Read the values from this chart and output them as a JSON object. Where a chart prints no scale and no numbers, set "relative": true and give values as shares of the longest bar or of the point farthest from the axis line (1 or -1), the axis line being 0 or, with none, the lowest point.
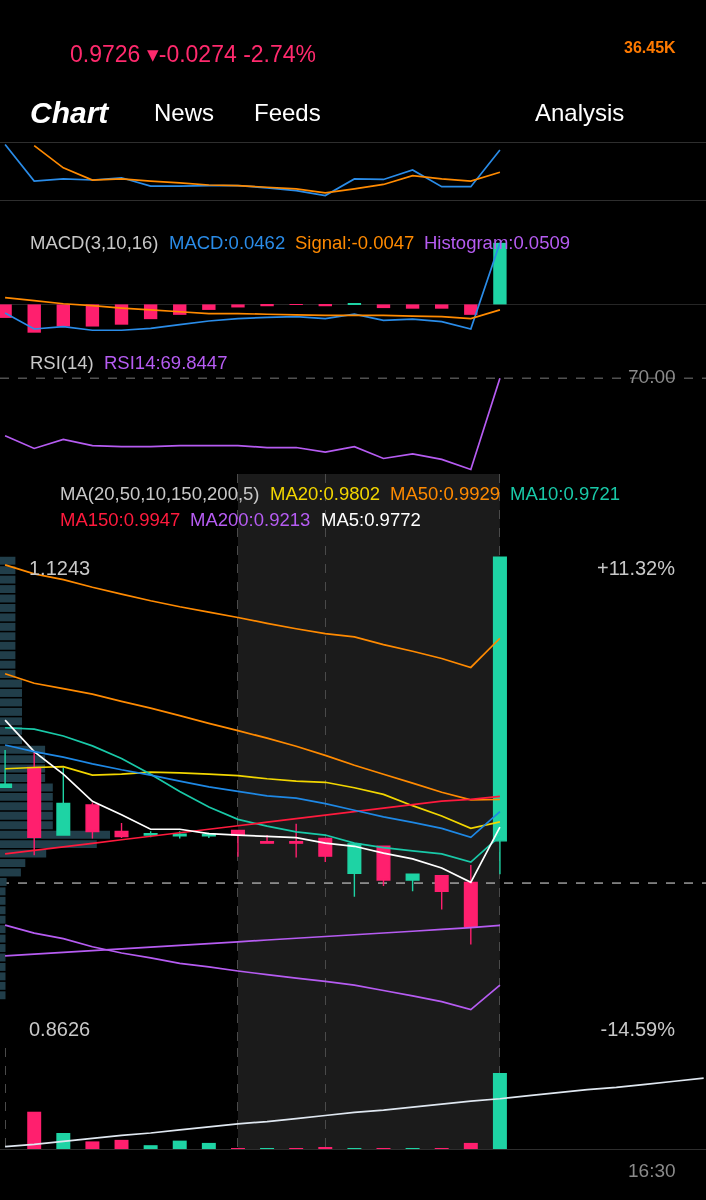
{
  "chart_data": [
    {
      "type": "other",
      "title": "0.9726 ▾-0.0274 -2.74%",
      "color": "#ff2a6d",
      "annotations": [
        "36.45K",
        "Chart",
        "News",
        "Feeds",
        "Analysis"
      ],
      "colors": [
        "#ff7a00",
        "#ffffff",
        "#ffffff",
        "#ffffff",
        "#ffffff"
      ]
    },
    {
      "type": "line",
      "relative": true,
      "tick_labels": false,
      "categories": [
        null,
        null,
        null,
        null,
        null,
        null,
        null,
        null,
        null,
        null,
        null,
        null,
        null,
        null,
        null,
        null,
        null,
        null,
        null,
        null,
        null,
        null,
        null,
        null,
        null
      ],
      "series": [
        {
          "color": "#2a8ce8",
          "values": [
            1.0,
            0.34,
            0.38,
            0.36,
            0.4,
            0.25,
            0.25,
            0.26,
            0.26,
            0.22,
            0.17,
            0.08,
            0.38,
            0.37,
            0.54,
            0.24,
            0.24,
            0.9,
            null,
            null,
            null,
            null,
            null,
            null,
            null
          ]
        },
        {
          "color": "#ff8a00",
          "values": [
            null,
            0.98,
            0.58,
            0.36,
            0.38,
            0.34,
            0.31,
            0.27,
            0.26,
            0.23,
            0.2,
            0.13,
            0.2,
            0.28,
            0.44,
            0.38,
            0.34,
            0.5,
            null,
            null,
            null,
            null,
            null,
            null,
            null
          ]
        }
      ]
    },
    {
      "type": "bar",
      "relative": true,
      "tick_labels": false,
      "title": "MACD(3,10,16)",
      "categories": [
        null,
        null,
        null,
        null,
        null,
        null,
        null,
        null,
        null,
        null,
        null,
        null,
        null,
        null,
        null,
        null,
        null,
        null,
        null,
        null,
        null,
        null,
        null,
        null,
        null
      ],
      "series": [
        {
          "name": "MACD:0.0462",
          "type": "line",
          "color": "#2a8ce8",
          "values": [
            -0.14,
            -0.4,
            -0.36,
            -0.42,
            -0.42,
            -0.39,
            -0.33,
            -0.27,
            -0.23,
            -0.21,
            -0.2,
            -0.23,
            -0.16,
            -0.26,
            -0.24,
            -0.28,
            -0.4,
            1.0,
            null,
            null,
            null,
            null,
            null,
            null,
            null
          ]
        },
        {
          "name": "Signal:-0.0047",
          "type": "line",
          "color": "#ff8a00",
          "values": [
            0.11,
            0.06,
            0.01,
            -0.02,
            -0.06,
            -0.09,
            -0.12,
            -0.15,
            -0.15,
            -0.16,
            -0.17,
            -0.18,
            -0.18,
            -0.18,
            -0.19,
            -0.2,
            -0.23,
            -0.09,
            null,
            null,
            null,
            null,
            null,
            null,
            null
          ]
        },
        {
          "name": "Histogram:0.0509",
          "type": "bar",
          "color": "#b65cf2",
          "colors": [
            "#ff1f6e",
            "#ff1f6e",
            "#ff1f6e",
            "#ff1f6e",
            "#ff1f6e",
            "#ff1f6e",
            "#ff1f6e",
            "#ff1f6e",
            "#ff1f6e",
            "#ff1f6e",
            "#ff1f6e",
            "#ff1f6e",
            "#1ed3a4",
            "#ff1f6e",
            "#ff1f6e",
            "#ff1f6e",
            "#ff1f6e",
            "#1ed3a4",
            null,
            null,
            null,
            null,
            null,
            null,
            null
          ],
          "values": [
            -0.22,
            -0.46,
            -0.36,
            -0.36,
            -0.33,
            -0.24,
            -0.17,
            -0.09,
            -0.05,
            -0.03,
            -0.01,
            -0.03,
            0.01,
            -0.06,
            -0.07,
            -0.07,
            -0.17,
            1.0,
            null,
            null,
            null,
            null,
            null,
            null,
            null
          ]
        }
      ]
    },
    {
      "type": "line",
      "relative": true,
      "tick_labels": false,
      "title": "RSI(14)",
      "categories": [
        null,
        null,
        null,
        null,
        null,
        null,
        null,
        null,
        null,
        null,
        null,
        null,
        null,
        null,
        null,
        null,
        null,
        null,
        null,
        null,
        null,
        null,
        null,
        null,
        null
      ],
      "series": [
        {
          "name": "RSI14:69.8447",
          "color": "#b65cf2",
          "values": [
            0.37,
            0.23,
            0.33,
            0.26,
            0.25,
            0.25,
            0.26,
            0.26,
            0.26,
            0.24,
            0.24,
            0.19,
            0.25,
            0.12,
            0.17,
            0.11,
            0,
            1.0,
            null,
            null,
            null,
            null,
            null,
            null,
            null
          ]
        }
      ],
      "ref_lines": [
        {
          "axis": "y",
          "value": 1.0,
          "line_style": "dashed",
          "color": "#7a7a7a"
        }
      ],
      "annotations": [
        "70.00"
      ]
    },
    {
      "type": "bar",
      "orientation": "horizontal",
      "relative": true,
      "tick_labels": false,
      "color": "#213e4a",
      "categories": [
        null,
        null,
        null,
        null,
        null,
        null,
        null,
        null,
        null,
        null,
        null,
        null,
        null,
        null,
        null,
        null,
        null,
        null,
        null,
        null,
        null,
        null,
        null,
        null,
        null,
        null,
        null,
        null,
        null,
        null,
        null,
        null,
        null,
        null,
        null,
        null,
        null,
        null,
        null,
        null,
        null,
        null,
        null,
        null,
        null,
        null,
        null
      ],
      "values": [
        0.14,
        0.14,
        0.14,
        0.14,
        0.14,
        0.14,
        0.14,
        0.14,
        0.14,
        0.14,
        0.14,
        0.14,
        0.14,
        0.2,
        0.2,
        0.2,
        0.2,
        0.2,
        0.2,
        0.2,
        0.41,
        0.41,
        0.41,
        0.41,
        0.48,
        0.48,
        0.48,
        0.48,
        0.48,
        1.0,
        0.88,
        0.42,
        0.23,
        0.19,
        0.06,
        0.05,
        0.05,
        0.05,
        0.05,
        0.05,
        0.05,
        0.05,
        0.05,
        0.05,
        0.05,
        0.05,
        0.05
      ]
    },
    {
      "type": "candlestick",
      "tick_labels": "y",
      "grid": "x",
      "title": "MA(20,50,10,150,200,5)",
      "categories": [
        null,
        null,
        null,
        null,
        null,
        null,
        null,
        null,
        null,
        null,
        null,
        null,
        null,
        null,
        null,
        null,
        null,
        null,
        null,
        null,
        null,
        null,
        null,
        null,
        null
      ],
      "ylim": [
        0.8516,
        1.178
      ],
      "yticks": [
        0.8626,
        1.1243
      ],
      "y2lim": [
        -15.68,
        16.64
      ],
      "y2ticks": [
        {
          "value": -14.59,
          "label": "-14.59%"
        },
        {
          "value": 11.32,
          "label": "+11.32%"
        }
      ],
      "ohlc": [
        [
          0.9999,
          1.0211,
          0.9999,
          1.0016
        ],
        [
          1.0111,
          1.0201,
          0.9612,
          0.9714
        ],
        [
          0.9727,
          1.0111,
          0.9727,
          0.9906
        ],
        [
          0.9898,
          0.9912,
          0.9707,
          0.9747
        ],
        [
          0.9747,
          0.9796,
          0.971,
          0.9719
        ],
        [
          0.9727,
          0.9748,
          0.9714,
          0.9735
        ],
        [
          0.9722,
          0.9748,
          0.9707,
          0.9732
        ],
        [
          0.9722,
          0.974,
          0.971,
          0.973
        ],
        [
          0.9753,
          0.9753,
          0.9604,
          0.9727
        ],
        [
          0.9689,
          0.9727,
          0.9681,
          0.9681
        ],
        [
          0.9689,
          0.9791,
          0.9599,
          0.9681
        ],
        [
          0.9707,
          0.9707,
          0.9574,
          0.9607
        ],
        [
          0.9509,
          0.9676,
          0.9376,
          0.9676
        ],
        [
          0.9663,
          0.9663,
          0.9437,
          0.9471
        ],
        [
          0.9471,
          0.9505,
          0.9407,
          0.9505
        ],
        [
          0.9496,
          0.9496,
          0.9304,
          0.9407
        ],
        [
          0.9458,
          0.9556,
          0.9105,
          0.9207
        ],
        [
          0.9694,
          1.1307,
          0.9504,
          1.1307
        ],
        null,
        null,
        null,
        null,
        null,
        null,
        null
      ],
      "colors": [
        "#1ed3a4",
        "#ff1f6e",
        "#1ed3a4",
        "#ff1f6e",
        "#ff1f6e",
        "#1ed3a4",
        "#1ed3a4",
        "#1ed3a4",
        "#ff1f6e",
        "#ff1f6e",
        "#ff1f6e",
        "#ff1f6e",
        "#1ed3a4",
        "#ff1f6e",
        "#1ed3a4",
        "#ff1f6e",
        "#ff1f6e",
        "#1ed3a4",
        null,
        null,
        null,
        null,
        null,
        null,
        null
      ],
      "series": [
        {
          "name": "MA20:0.9802",
          "type": "line",
          "color": "#f2d600",
          "values": [
            1.0104,
            1.0111,
            1.0116,
            1.0068,
            1.0073,
            1.0085,
            1.008,
            1.0073,
            1.0065,
            1.0047,
            1.0034,
            1.0027,
            0.9996,
            0.9958,
            0.9894,
            0.9835,
            0.9765,
            0.9802,
            null,
            null,
            null,
            null,
            null,
            null,
            null
          ]
        },
        {
          "name": "MA50:0.9929",
          "type": "line",
          "color": "#ff8a00",
          "values": [
            1.0644,
            1.059,
            1.056,
            1.0528,
            1.0487,
            1.0449,
            1.0406,
            1.0362,
            1.0321,
            1.0278,
            1.0232,
            1.018,
            1.0124,
            1.0073,
            1.0022,
            0.997,
            0.9927,
            0.9929,
            null,
            null,
            null,
            null,
            null,
            null,
            null
          ]
        },
        {
          "name": "MA10:0.9721",
          "type": "line",
          "color": "#19c9a8",
          "values": [
            1.0337,
            1.0329,
            1.029,
            1.0234,
            1.0162,
            1.0073,
            0.9975,
            0.9886,
            0.9816,
            0.9778,
            0.9745,
            0.9727,
            0.9681,
            0.9655,
            0.9637,
            0.962,
            0.9573,
            0.9721,
            null,
            null,
            null,
            null,
            null,
            null,
            null
          ]
        },
        {
          "name": "MA150:0.9947",
          "type": "line",
          "color": "#ff1a3d",
          "values": [
            0.962,
            0.964,
            0.966,
            0.968,
            0.97,
            0.972,
            0.974,
            0.976,
            0.978,
            0.98,
            0.982,
            0.984,
            0.986,
            0.988,
            0.99,
            0.992,
            0.993,
            0.9947,
            null,
            null,
            null,
            null,
            null,
            null,
            null
          ]
        },
        {
          "name": "MA200:0.9213",
          "type": "line",
          "color": "#b65cf2",
          "values": [
            0.904,
            0.905,
            0.906,
            0.907,
            0.908,
            0.909,
            0.91,
            0.911,
            0.912,
            0.913,
            0.914,
            0.915,
            0.916,
            0.917,
            0.918,
            0.919,
            0.92,
            0.9213,
            null,
            null,
            null,
            null,
            null,
            null,
            null
          ]
        },
        {
          "name": "MA5:0.9772",
          "type": "line",
          "color": "#ffffff",
          "values": [
            1.038,
            1.0201,
            1.0073,
            0.9919,
            0.9842,
            0.976,
            0.976,
            0.9735,
            0.9727,
            0.9719,
            0.9712,
            0.9681,
            0.9663,
            0.9624,
            0.9591,
            0.954,
            0.9458,
            0.9772,
            null,
            null,
            null,
            null,
            null,
            null,
            null
          ]
        },
        {
          "type": "line",
          "color": "#ff8a00",
          "values": [
            1.1263,
            1.1212,
            1.1179,
            1.1136,
            1.1097,
            1.1059,
            1.1025,
            1.0995,
            1.0964,
            1.0931,
            1.09,
            1.0872,
            1.0854,
            1.081,
            1.0772,
            1.0731,
            1.068,
            1.0846,
            null,
            null,
            null,
            null,
            null,
            null,
            null
          ]
        },
        {
          "type": "line",
          "color": "#1e88e5",
          "values": [
            1.0239,
            1.0201,
            1.017,
            1.0132,
            1.0098,
            1.0068,
            1.0034,
            1.0001,
            0.9975,
            0.995,
            0.9937,
            0.9906,
            0.9868,
            0.983,
            0.9799,
            0.9765,
            0.9714,
            0.986,
            null,
            null,
            null,
            null,
            null,
            null,
            null
          ]
        },
        {
          "type": "line",
          "color": "#b65cf2",
          "values": [
            0.9215,
            0.9169,
            0.9138,
            0.9092,
            0.9056,
            0.9028,
            0.8997,
            0.8977,
            0.8954,
            0.8933,
            0.8913,
            0.8895,
            0.8874,
            0.8843,
            0.8812,
            0.878,
            0.8734,
            0.8874,
            null,
            null,
            null,
            null,
            null,
            null,
            null
          ]
        }
      ],
      "ref_lines": [
        {
          "axis": "y",
          "value": 0.9454,
          "line_style": "dashed",
          "color": "#e6e6e6"
        }
      ]
    },
    {
      "type": "bar",
      "relative": true,
      "tick_labels": false,
      "grid": "x",
      "categories": [
        null,
        null,
        null,
        null,
        null,
        null,
        null,
        null,
        null,
        null,
        null,
        null,
        null,
        null,
        null,
        null,
        null,
        null,
        null,
        null,
        null,
        null,
        null,
        null,
        null
      ],
      "series": [
        {
          "type": "bar",
          "colors": [
            null,
            "#ff1f6e",
            "#1ed3a4",
            "#ff1f6e",
            "#ff1f6e",
            "#1ed3a4",
            "#1ed3a4",
            "#1ed3a4",
            "#ff1f6e",
            "#1ed3a4",
            "#ff1f6e",
            "#ff1f6e",
            "#1ed3a4",
            "#ff1f6e",
            "#1ed3a4",
            "#ff1f6e",
            "#ff1f6e",
            "#1ed3a4",
            null,
            null,
            null,
            null,
            null,
            null,
            null
          ],
          "values": [
            null,
            0.49,
            0.21,
            0.1,
            0.12,
            0.05,
            0.11,
            0.08,
            0.01,
            0.01,
            0.01,
            0.02,
            0.01,
            0.01,
            0.01,
            0.01,
            0.08,
            1.0,
            null,
            null,
            null,
            null,
            null,
            null,
            null
          ]
        },
        {
          "type": "line",
          "color": "#dfe7f0",
          "values": [
            0.03,
            0.06,
            0.1,
            0.14,
            0.18,
            0.21,
            0.25,
            0.29,
            0.33,
            0.36,
            0.4,
            0.44,
            0.48,
            0.51,
            0.55,
            0.59,
            0.63,
            0.66,
            0.7,
            0.74,
            0.78,
            0.81,
            0.85,
            0.89,
            0.93
          ]
        }
      ],
      "annotations": [
        "16:30"
      ]
    }
  ]
}
